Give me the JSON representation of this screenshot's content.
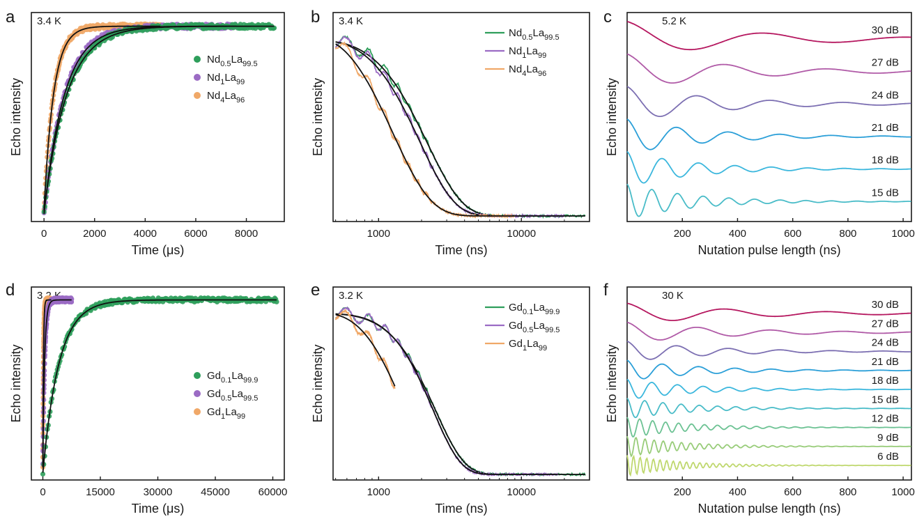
{
  "colors": {
    "nd05": "#2e9e5b",
    "nd1": "#9b6bc4",
    "nd4": "#f0a868",
    "fit": "#111111",
    "db30": "#b5175f",
    "db27": "#b05aa7",
    "db24": "#7c6fb2",
    "db21": "#2b9fd8",
    "db18": "#3bb7dd",
    "db15": "#49bcc8",
    "db12": "#6cc293",
    "db9": "#98cc79",
    "db6": "#bfd86e"
  },
  "chart_data": [
    {
      "panel": "a",
      "type": "scatter",
      "annotation": "3.4 K",
      "xlabel": "Time (μs)",
      "ylabel": "Echo intensity",
      "xlim": [
        -500,
        9500
      ],
      "xticks": [
        0,
        2000,
        4000,
        6000,
        8000
      ],
      "ylim": [
        0,
        1.05
      ],
      "legend": "right",
      "series": [
        {
          "name_main": "Nd",
          "name_sub1": "0.5",
          "name_mid": "La",
          "name_sub2": "99.5",
          "color_key": "nd05",
          "tau": 900,
          "xmax": 9100,
          "y0": 0.02
        },
        {
          "name_main": "Nd",
          "name_sub1": "1",
          "name_mid": "La",
          "name_sub2": "99",
          "color_key": "nd1",
          "tau": 800,
          "xmax": 7600,
          "y0": 0.01
        },
        {
          "name_main": "Nd",
          "name_sub1": "4",
          "name_mid": "La",
          "name_sub2": "96",
          "color_key": "nd4",
          "tau": 380,
          "xmax": 4600,
          "y0": 0.03
        }
      ]
    },
    {
      "panel": "b",
      "type": "line",
      "annotation": "3.4 K",
      "xscale": "log",
      "xlabel": "Time (ns)",
      "ylabel": "Echo intensity",
      "xlim": [
        480,
        30000
      ],
      "xticks": [
        1000,
        10000
      ],
      "ylim": [
        0,
        1.05
      ],
      "legend": "top-right",
      "series": [
        {
          "name_main": "Nd",
          "name_sub1": "0.5",
          "name_mid": "La",
          "name_sub2": "99.5",
          "color_key": "nd05",
          "tau": 1900,
          "beta": 1.6,
          "xmax": 28000
        },
        {
          "name_main": "Nd",
          "name_sub1": "1",
          "name_mid": "La",
          "name_sub2": "99",
          "color_key": "nd1",
          "tau": 1650,
          "beta": 1.6,
          "xmax": 20000
        },
        {
          "name_main": "Nd",
          "name_sub1": "4",
          "name_mid": "La",
          "name_sub2": "96",
          "color_key": "nd4",
          "tau": 1000,
          "beta": 1.4,
          "xmax": 9000
        }
      ]
    },
    {
      "panel": "c",
      "type": "line",
      "annotation": "5.2 K",
      "xlabel": "Nutation pulse length (ns)",
      "ylabel": "Echo intensity",
      "xlim": [
        0,
        1030
      ],
      "xticks": [
        200,
        400,
        600,
        800,
        1000
      ],
      "series": [
        {
          "name": "30 dB",
          "color_key": "db30",
          "period": 520,
          "decay": 450
        },
        {
          "name": "27 dB",
          "color_key": "db27",
          "period": 370,
          "decay": 380
        },
        {
          "name": "24 dB",
          "color_key": "db24",
          "period": 265,
          "decay": 330
        },
        {
          "name": "21 dB",
          "color_key": "db21",
          "period": 187,
          "decay": 270
        },
        {
          "name": "18 dB",
          "color_key": "db18",
          "period": 132,
          "decay": 240
        },
        {
          "name": "15 dB",
          "color_key": "db15",
          "period": 93,
          "decay": 230
        }
      ]
    },
    {
      "panel": "d",
      "type": "scatter",
      "annotation": "3.2 K",
      "xlabel": "Time (μs)",
      "ylabel": "Echo intensity",
      "xlim": [
        -3000,
        63000
      ],
      "xticks": [
        0,
        15000,
        30000,
        45000,
        60000
      ],
      "ylim": [
        0,
        1.05
      ],
      "legend": "right",
      "series": [
        {
          "name_main": "Gd",
          "name_sub1": "0.1",
          "name_mid": "La",
          "name_sub2": "99.9",
          "color_key": "nd05",
          "tau": 4200,
          "xmax": 61000,
          "y0": 0.01
        },
        {
          "name_main": "Gd",
          "name_sub1": "0.5",
          "name_mid": "La",
          "name_sub2": "99.5",
          "color_key": "nd1",
          "tau": 480,
          "xmax": 7500,
          "y0": 0.07
        },
        {
          "name_main": "Gd",
          "name_sub1": "1",
          "name_mid": "La",
          "name_sub2": "99",
          "color_key": "nd4",
          "tau": 160,
          "xmax": 2200,
          "y0": 0.04
        }
      ]
    },
    {
      "panel": "e",
      "type": "line",
      "annotation": "3.2 K",
      "xscale": "log",
      "xlabel": "Time (ns)",
      "ylabel": "Echo intensity",
      "xlim": [
        480,
        30000
      ],
      "xticks": [
        1000,
        10000
      ],
      "ylim": [
        0,
        1.05
      ],
      "legend": "top-right",
      "series": [
        {
          "name_main": "Gd",
          "name_sub1": "0.1",
          "name_mid": "La",
          "name_sub2": "99.9",
          "color_key": "nd05",
          "tau": 2150,
          "beta": 1.9,
          "xmax": 28000
        },
        {
          "name_main": "Gd",
          "name_sub1": "0.5",
          "name_mid": "La",
          "name_sub2": "99.5",
          "color_key": "nd1",
          "tau": 2050,
          "beta": 2.0,
          "xmax": 18000
        },
        {
          "name_main": "Gd",
          "name_sub1": "1",
          "name_mid": "La",
          "name_sub2": "99",
          "color_key": "nd4",
          "tau": 1150,
          "beta": 1.7,
          "xmax": 1300
        }
      ]
    },
    {
      "panel": "f",
      "type": "line",
      "annotation": "30 K",
      "xlabel": "Nutation pulse length (ns)",
      "ylabel": "Echo intensity",
      "xlim": [
        0,
        1030
      ],
      "xticks": [
        200,
        400,
        600,
        800,
        1000
      ],
      "series": [
        {
          "name": "30 dB",
          "color_key": "db30",
          "period": 370,
          "decay": 420
        },
        {
          "name": "27 dB",
          "color_key": "db27",
          "period": 265,
          "decay": 360
        },
        {
          "name": "24 dB",
          "color_key": "db24",
          "period": 187,
          "decay": 300
        },
        {
          "name": "21 dB",
          "color_key": "db21",
          "period": 132,
          "decay": 260
        },
        {
          "name": "18 dB",
          "color_key": "db18",
          "period": 93,
          "decay": 230
        },
        {
          "name": "15 dB",
          "color_key": "db15",
          "period": 66,
          "decay": 220
        },
        {
          "name": "12 dB",
          "color_key": "db12",
          "period": 47,
          "decay": 210
        },
        {
          "name": "9 dB",
          "color_key": "db9",
          "period": 33,
          "decay": 200
        },
        {
          "name": "6 dB",
          "color_key": "db6",
          "period": 24,
          "decay": 190
        }
      ]
    }
  ]
}
